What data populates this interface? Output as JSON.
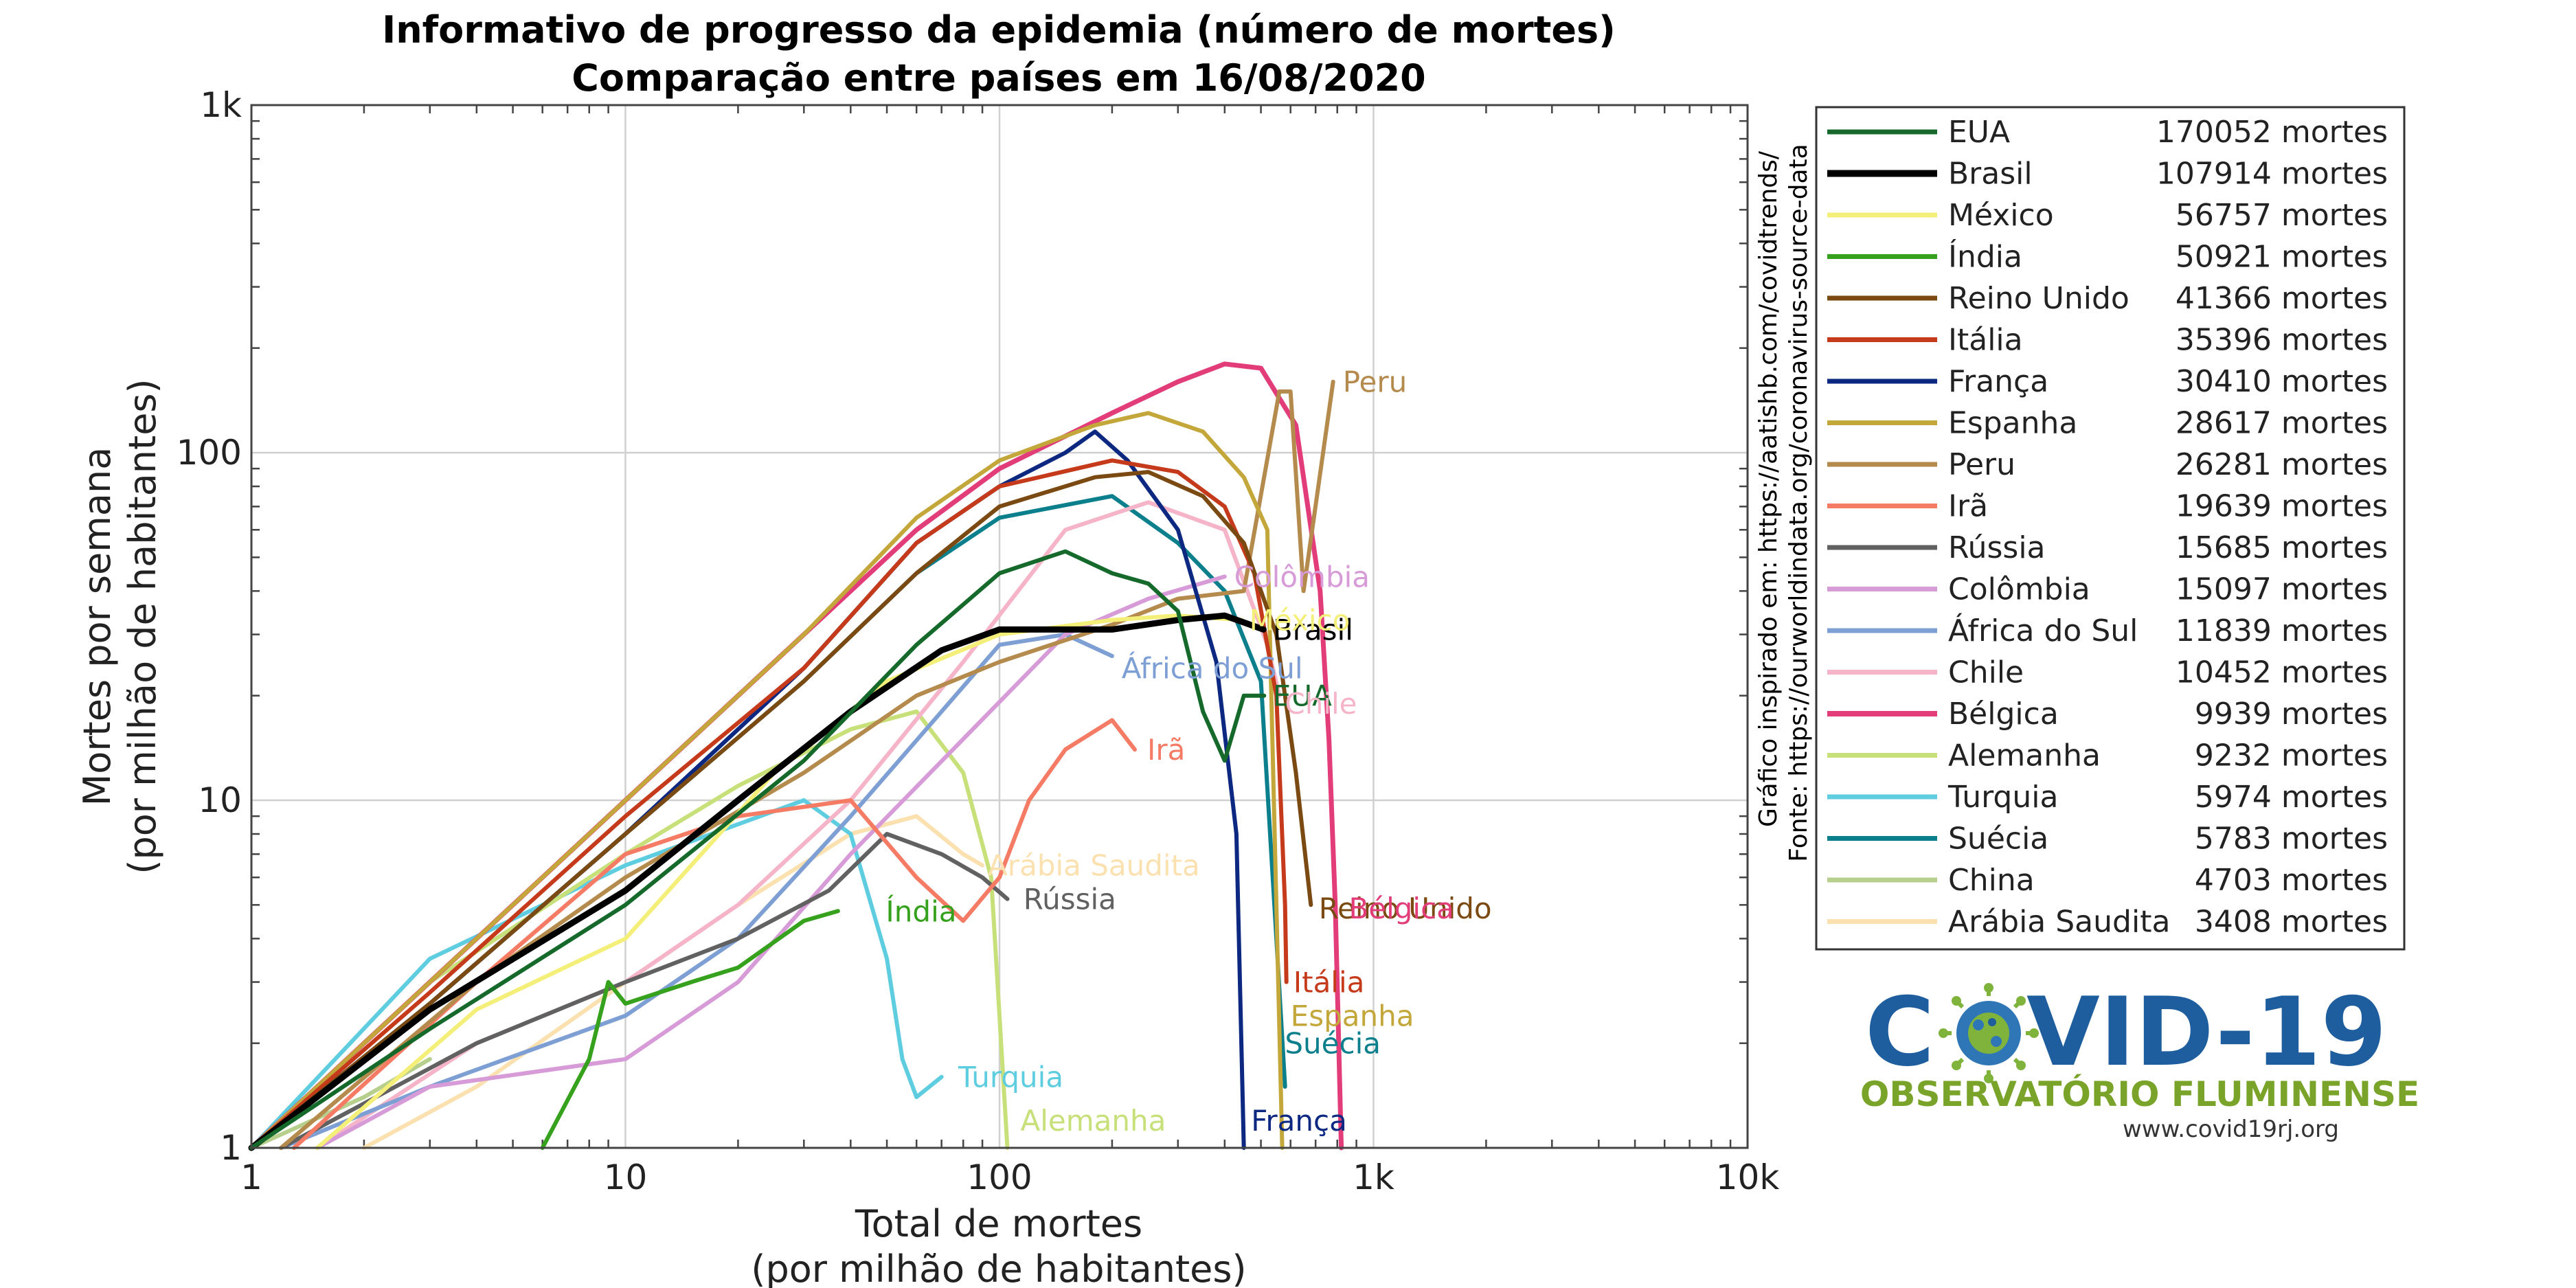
{
  "chart_data": {
    "type": "line",
    "title_line1": "Informativo de progresso da epidemia (número de mortes)",
    "title_line2": "Comparação entre países em 16/08/2020",
    "xlabel_line1": "Total de mortes",
    "xlabel_line2": "(por milhão de habitantes)",
    "ylabel_line1": "Mortes por semana",
    "ylabel_line2": "(por milhão de habitantes)",
    "x_scale": "log",
    "y_scale": "log",
    "xlim": [
      1,
      10000
    ],
    "ylim": [
      1,
      1000
    ],
    "x_ticks": [
      {
        "value": 1,
        "label": "1"
      },
      {
        "value": 10,
        "label": "10"
      },
      {
        "value": 100,
        "label": "100"
      },
      {
        "value": 1000,
        "label": "1k"
      },
      {
        "value": 10000,
        "label": "10k"
      }
    ],
    "y_ticks": [
      {
        "value": 1,
        "label": "1"
      },
      {
        "value": 10,
        "label": "10"
      },
      {
        "value": 100,
        "label": "100"
      },
      {
        "value": 1000,
        "label": "1k"
      }
    ],
    "grid": true,
    "legend_placement": "right",
    "side_note_1": "Gráfico inspirado em: https://aatishb.com/covidtrends/",
    "side_note_2": "Fonte: https://ourworldindata.org/coronavirus-source-data",
    "series": [
      {
        "name": "EUA",
        "label": "EUA",
        "legend_value": "170052 mortes",
        "color": "#156a2b",
        "width": 6,
        "points": [
          [
            1,
            1
          ],
          [
            3,
            2.2
          ],
          [
            10,
            5
          ],
          [
            30,
            13
          ],
          [
            60,
            28
          ],
          [
            100,
            45
          ],
          [
            150,
            52
          ],
          [
            200,
            45
          ],
          [
            250,
            42
          ],
          [
            300,
            35
          ],
          [
            350,
            18
          ],
          [
            400,
            13
          ],
          [
            450,
            20
          ],
          [
            510,
            20
          ]
        ],
        "label_at": [
          520,
          20
        ]
      },
      {
        "name": "Brasil",
        "label": "Brasil",
        "legend_value": "107914 mortes",
        "color": "#000000",
        "width": 9,
        "points": [
          [
            1,
            0.95
          ],
          [
            3,
            2.5
          ],
          [
            10,
            5.5
          ],
          [
            20,
            10
          ],
          [
            40,
            18
          ],
          [
            70,
            27
          ],
          [
            100,
            31
          ],
          [
            200,
            31
          ],
          [
            300,
            33
          ],
          [
            400,
            34
          ],
          [
            508,
            31
          ]
        ],
        "label_at": [
          520,
          31
        ]
      },
      {
        "name": "México",
        "label": "México",
        "legend_value": "56757 mortes",
        "color": "#f4ef78",
        "width": 6,
        "points": [
          [
            1.5,
            1
          ],
          [
            4,
            2.5
          ],
          [
            10,
            4
          ],
          [
            25,
            12
          ],
          [
            50,
            22
          ],
          [
            100,
            30
          ],
          [
            200,
            33
          ],
          [
            300,
            34
          ],
          [
            445,
            33
          ]
        ],
        "label_at": [
          450,
          33
        ]
      },
      {
        "name": "Índia",
        "label": "Índia",
        "legend_value": "50921 mortes",
        "color": "#36a11c",
        "width": 6,
        "points": [
          [
            6,
            1
          ],
          [
            8,
            1.8
          ],
          [
            9,
            3
          ],
          [
            10,
            2.6
          ],
          [
            15,
            3
          ],
          [
            20,
            3.3
          ],
          [
            30,
            4.5
          ],
          [
            37,
            4.8
          ]
        ],
        "label_at": [
          48,
          4.8
        ]
      },
      {
        "name": "Reino Unido",
        "label": "Reino Unido",
        "legend_value": "41366 mortes",
        "color": "#7a4a12",
        "width": 6,
        "points": [
          [
            1,
            1
          ],
          [
            3,
            2.6
          ],
          [
            10,
            8
          ],
          [
            30,
            22
          ],
          [
            60,
            45
          ],
          [
            100,
            70
          ],
          [
            180,
            85
          ],
          [
            250,
            88
          ],
          [
            350,
            75
          ],
          [
            450,
            55
          ],
          [
            550,
            30
          ],
          [
            620,
            12
          ],
          [
            680,
            5
          ]
        ],
        "label_at": [
          690,
          4.9
        ]
      },
      {
        "name": "Itália",
        "label": "Itália",
        "legend_value": "35396 mortes",
        "color": "#c63a1c",
        "width": 6,
        "points": [
          [
            1,
            1
          ],
          [
            3,
            2.8
          ],
          [
            10,
            9
          ],
          [
            30,
            24
          ],
          [
            60,
            55
          ],
          [
            100,
            80
          ],
          [
            200,
            95
          ],
          [
            300,
            88
          ],
          [
            400,
            70
          ],
          [
            480,
            45
          ],
          [
            550,
            20
          ],
          [
            580,
            5
          ],
          [
            585,
            3
          ]
        ],
        "label_at": [
          590,
          3
        ]
      },
      {
        "name": "França",
        "label": "França",
        "legend_value": "30410 mortes",
        "color": "#0c2880",
        "width": 6,
        "points": [
          [
            1,
            1
          ],
          [
            3,
            2.6
          ],
          [
            10,
            8
          ],
          [
            30,
            24
          ],
          [
            60,
            55
          ],
          [
            100,
            80
          ],
          [
            150,
            100
          ],
          [
            180,
            115
          ],
          [
            220,
            95
          ],
          [
            300,
            60
          ],
          [
            380,
            25
          ],
          [
            430,
            8
          ],
          [
            450,
            1
          ]
        ],
        "label_at": [
          455,
          1.2
        ]
      },
      {
        "name": "Espanha",
        "label": "Espanha",
        "legend_value": "28617 mortes",
        "color": "#c4a73a",
        "width": 6,
        "points": [
          [
            1,
            1
          ],
          [
            3,
            3
          ],
          [
            10,
            10
          ],
          [
            30,
            30
          ],
          [
            60,
            65
          ],
          [
            100,
            95
          ],
          [
            180,
            120
          ],
          [
            250,
            130
          ],
          [
            350,
            115
          ],
          [
            450,
            85
          ],
          [
            520,
            60
          ],
          [
            570,
            1
          ]
        ],
        "label_at": [
          580,
          2.4
        ]
      },
      {
        "name": "Peru",
        "label": "Peru",
        "legend_value": "26281 mortes",
        "color": "#b58a4d",
        "width": 6,
        "points": [
          [
            1.2,
            1
          ],
          [
            4,
            3
          ],
          [
            10,
            6
          ],
          [
            30,
            12
          ],
          [
            60,
            20
          ],
          [
            100,
            25
          ],
          [
            200,
            32
          ],
          [
            300,
            38
          ],
          [
            450,
            40
          ],
          [
            560,
            150
          ],
          [
            600,
            150
          ],
          [
            650,
            40
          ],
          [
            780,
            160
          ]
        ],
        "label_at": [
          800,
          160
        ]
      },
      {
        "name": "Irã",
        "label": "Irã",
        "legend_value": "19639 mortes",
        "color": "#f57b65",
        "width": 6,
        "points": [
          [
            1.3,
            1
          ],
          [
            4,
            3
          ],
          [
            10,
            7
          ],
          [
            20,
            9
          ],
          [
            40,
            10
          ],
          [
            60,
            6
          ],
          [
            80,
            4.5
          ],
          [
            100,
            6
          ],
          [
            120,
            10
          ],
          [
            150,
            14
          ],
          [
            200,
            17
          ],
          [
            230,
            14
          ]
        ],
        "label_at": [
          240,
          14
        ]
      },
      {
        "name": "Rússia",
        "label": "Rússia",
        "legend_value": "15685 mortes",
        "color": "#616161",
        "width": 6,
        "points": [
          [
            1.2,
            1
          ],
          [
            4,
            2
          ],
          [
            10,
            3
          ],
          [
            20,
            4
          ],
          [
            35,
            5.5
          ],
          [
            50,
            8
          ],
          [
            70,
            7
          ],
          [
            90,
            6
          ],
          [
            105,
            5.2
          ]
        ],
        "label_at": [
          112,
          5.2
        ]
      },
      {
        "name": "Colômbia",
        "label": "Colômbia",
        "legend_value": "15097 mortes",
        "color": "#d79bd8",
        "width": 6,
        "points": [
          [
            1.5,
            1
          ],
          [
            3,
            1.5
          ],
          [
            10,
            1.8
          ],
          [
            20,
            3
          ],
          [
            40,
            7
          ],
          [
            80,
            15
          ],
          [
            150,
            30
          ],
          [
            250,
            38
          ],
          [
            400,
            44
          ]
        ],
        "label_at": [
          410,
          44
        ]
      },
      {
        "name": "África do Sul",
        "label": "África do Sul",
        "legend_value": "11839 mortes",
        "color": "#7d9fd4",
        "width": 6,
        "points": [
          [
            1.2,
            1
          ],
          [
            3,
            1.5
          ],
          [
            10,
            2.4
          ],
          [
            20,
            4
          ],
          [
            40,
            9
          ],
          [
            70,
            18
          ],
          [
            100,
            28
          ],
          [
            150,
            30
          ],
          [
            200,
            26
          ]
        ],
        "label_at": [
          205,
          24
        ]
      },
      {
        "name": "Chile",
        "label": "Chile",
        "legend_value": "10452 mortes",
        "color": "#f5b4c8",
        "width": 6,
        "points": [
          [
            1.5,
            1
          ],
          [
            4,
            2
          ],
          [
            10,
            3
          ],
          [
            20,
            5
          ],
          [
            40,
            10
          ],
          [
            80,
            25
          ],
          [
            150,
            60
          ],
          [
            250,
            72
          ],
          [
            400,
            60
          ],
          [
            520,
            28
          ],
          [
            560,
            20
          ]
        ],
        "label_at": [
          560,
          19
        ]
      },
      {
        "name": "Bélgica",
        "label": "Bélgica",
        "legend_value": "9939 mortes",
        "color": "#e23c79",
        "width": 7,
        "points": [
          [
            1,
            1
          ],
          [
            3,
            3
          ],
          [
            10,
            10
          ],
          [
            30,
            30
          ],
          [
            60,
            60
          ],
          [
            100,
            90
          ],
          [
            200,
            130
          ],
          [
            300,
            160
          ],
          [
            400,
            180
          ],
          [
            500,
            175
          ],
          [
            620,
            120
          ],
          [
            720,
            40
          ],
          [
            760,
            15
          ],
          [
            790,
            5
          ],
          [
            820,
            1
          ]
        ],
        "label_at": [
          830,
          4.9
        ]
      },
      {
        "name": "Alemanha",
        "label": "Alemanha",
        "legend_value": "9232 mortes",
        "color": "#c8e07a",
        "width": 6,
        "points": [
          [
            1,
            1
          ],
          [
            3,
            3
          ],
          [
            10,
            7
          ],
          [
            20,
            11
          ],
          [
            40,
            16
          ],
          [
            60,
            18
          ],
          [
            80,
            12
          ],
          [
            95,
            6
          ],
          [
            105,
            1
          ]
        ],
        "label_at": [
          110,
          1.2
        ]
      },
      {
        "name": "Turquia",
        "label": "Turquia",
        "legend_value": "5974 mortes",
        "color": "#5fcde0",
        "width": 6,
        "points": [
          [
            1,
            1
          ],
          [
            3,
            3.5
          ],
          [
            10,
            6.5
          ],
          [
            30,
            10
          ],
          [
            40,
            8
          ],
          [
            50,
            3.5
          ],
          [
            55,
            1.8
          ],
          [
            60,
            1.4
          ],
          [
            70,
            1.6
          ]
        ],
        "label_at": [
          75,
          1.6
        ]
      },
      {
        "name": "Suécia",
        "label": "Suécia",
        "legend_value": "5783 mortes",
        "color": "#0b7f8c",
        "width": 6,
        "points": [
          [
            1,
            1
          ],
          [
            3,
            2.6
          ],
          [
            10,
            8
          ],
          [
            30,
            22
          ],
          [
            60,
            45
          ],
          [
            100,
            65
          ],
          [
            200,
            75
          ],
          [
            300,
            55
          ],
          [
            400,
            40
          ],
          [
            500,
            22
          ],
          [
            550,
            4
          ],
          [
            580,
            1.5
          ]
        ],
        "label_at": [
          560,
          2
        ]
      },
      {
        "name": "China",
        "label": "",
        "legend_value": "4703 mortes",
        "color": "#b7cf8c",
        "width": 6,
        "points": [
          [
            1,
            1
          ],
          [
            2,
            1.4
          ],
          [
            3,
            1.8
          ]
        ],
        "label_at": null
      },
      {
        "name": "Arábia Saudita",
        "label": "Arábia Saudita",
        "legend_value": "3408 mortes",
        "color": "#fbe0b0",
        "width": 6,
        "points": [
          [
            2,
            1
          ],
          [
            4,
            1.5
          ],
          [
            10,
            3
          ],
          [
            20,
            5
          ],
          [
            40,
            8
          ],
          [
            60,
            9
          ],
          [
            80,
            7
          ],
          [
            90,
            6.5
          ]
        ],
        "label_at": [
          90,
          6.5
        ]
      }
    ]
  },
  "logo": {
    "text_pre": "C",
    "text_post": "VID-19",
    "subtitle": "OBSERVATÓRIO FLUMINENSE",
    "url": "www.covid19rj.org"
  }
}
